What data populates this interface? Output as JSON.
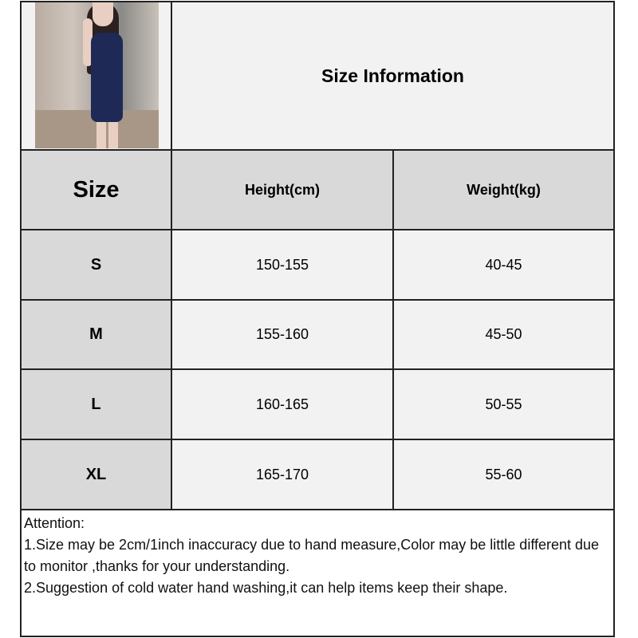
{
  "title": "Size Information",
  "table": {
    "headers": [
      "Size",
      "Height(cm)",
      "Weight(kg)"
    ],
    "rows": [
      {
        "size": "S",
        "height": "150-155",
        "weight": "40-45"
      },
      {
        "size": "M",
        "height": "155-160",
        "weight": "45-50"
      },
      {
        "size": "L",
        "height": "160-165",
        "weight": "50-55"
      },
      {
        "size": "XL",
        "height": "165-170",
        "weight": "55-60"
      }
    ]
  },
  "notes": {
    "heading": "Attention:",
    "lines": [
      "1.Size may be 2cm/1inch inaccuracy due to hand measure,Color may be little different due to monitor ,thanks for your understanding.",
      "2.Suggestion of cold water hand washing,it can help items keep their shape."
    ]
  },
  "colors": {
    "header_bg": "#d9d9d9",
    "cell_bg": "#f2f2f2",
    "dress": "#1e2a55"
  }
}
